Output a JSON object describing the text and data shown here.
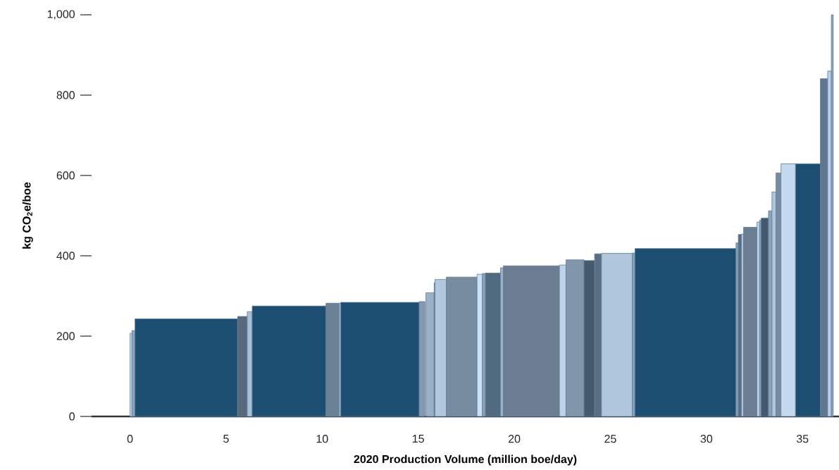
{
  "chart_data": {
    "type": "histogram",
    "xlabel": "2020 Production Volume (million boe/day)",
    "ylabel": "kg CO$_{2}$e/boe",
    "bins": [
      0.0,
      0.1,
      0.26,
      5.6,
      6.1,
      6.36,
      10.2,
      10.9,
      10.97,
      15.05,
      15.35,
      15.4,
      15.83,
      15.87,
      16.46,
      18.06,
      18.34,
      18.5,
      19.28,
      19.43,
      22.35,
      22.69,
      23.63,
      24.18,
      24.54,
      26.14,
      26.28,
      31.54,
      31.66,
      31.82,
      31.93,
      32.63,
      32.77,
      32.85,
      33.23,
      33.41,
      33.62,
      33.88,
      34.64,
      35.93,
      36.31,
      36.5,
      36.6
    ],
    "values": [
      207,
      214,
      243,
      249,
      261,
      275,
      282,
      282,
      284,
      286,
      null,
      308,
      333,
      341,
      347,
      354,
      356,
      357,
      370,
      375,
      377,
      390,
      388,
      405,
      406,
      407,
      418,
      432,
      453,
      454,
      471,
      484,
      489,
      494,
      512,
      559,
      606,
      629,
      629,
      841,
      860,
      1000
    ],
    "colors": [
      "#c9dff2",
      "#8aa3ba",
      "#1c4e72",
      "#58697d",
      "#a7c0d6",
      "#1c4e72",
      "#6b8196",
      "#c5daee",
      "#1c4e72",
      "#8299ae",
      "#6b8196",
      "#9ab1c8",
      "#6b8196",
      "#b2c8df",
      "#778ca0",
      "#c9e0f5",
      "#8aa3ba",
      "#526a80",
      "#9ab1c8",
      "#6a7d91",
      "#bed3ea",
      "#8196ab",
      "#465a6d",
      "#5a6e82",
      "#b0c6dc",
      "#8aa3ba",
      "#1c4e72",
      "#8aa3ba",
      "#5a6e82",
      "#b0c6dc",
      "#6a7d91",
      "#bed3ea",
      "#8aa3ba",
      "#465a6d",
      "#8aa3ba",
      "#b0c6dc",
      "#778ca0",
      "#c5daee",
      "#1c4e72",
      "#5f7890",
      "#b9d1ea",
      "#8aa3ba"
    ],
    "xlim": [
      -2,
      36.9
    ],
    "ylim": [
      0,
      1000
    ],
    "xticks": [
      0,
      5,
      10,
      15,
      20,
      25,
      30,
      35
    ],
    "yticks": [
      0,
      200,
      400,
      600,
      800,
      {
        "value": 1000,
        "label": "1,000"
      }
    ]
  }
}
